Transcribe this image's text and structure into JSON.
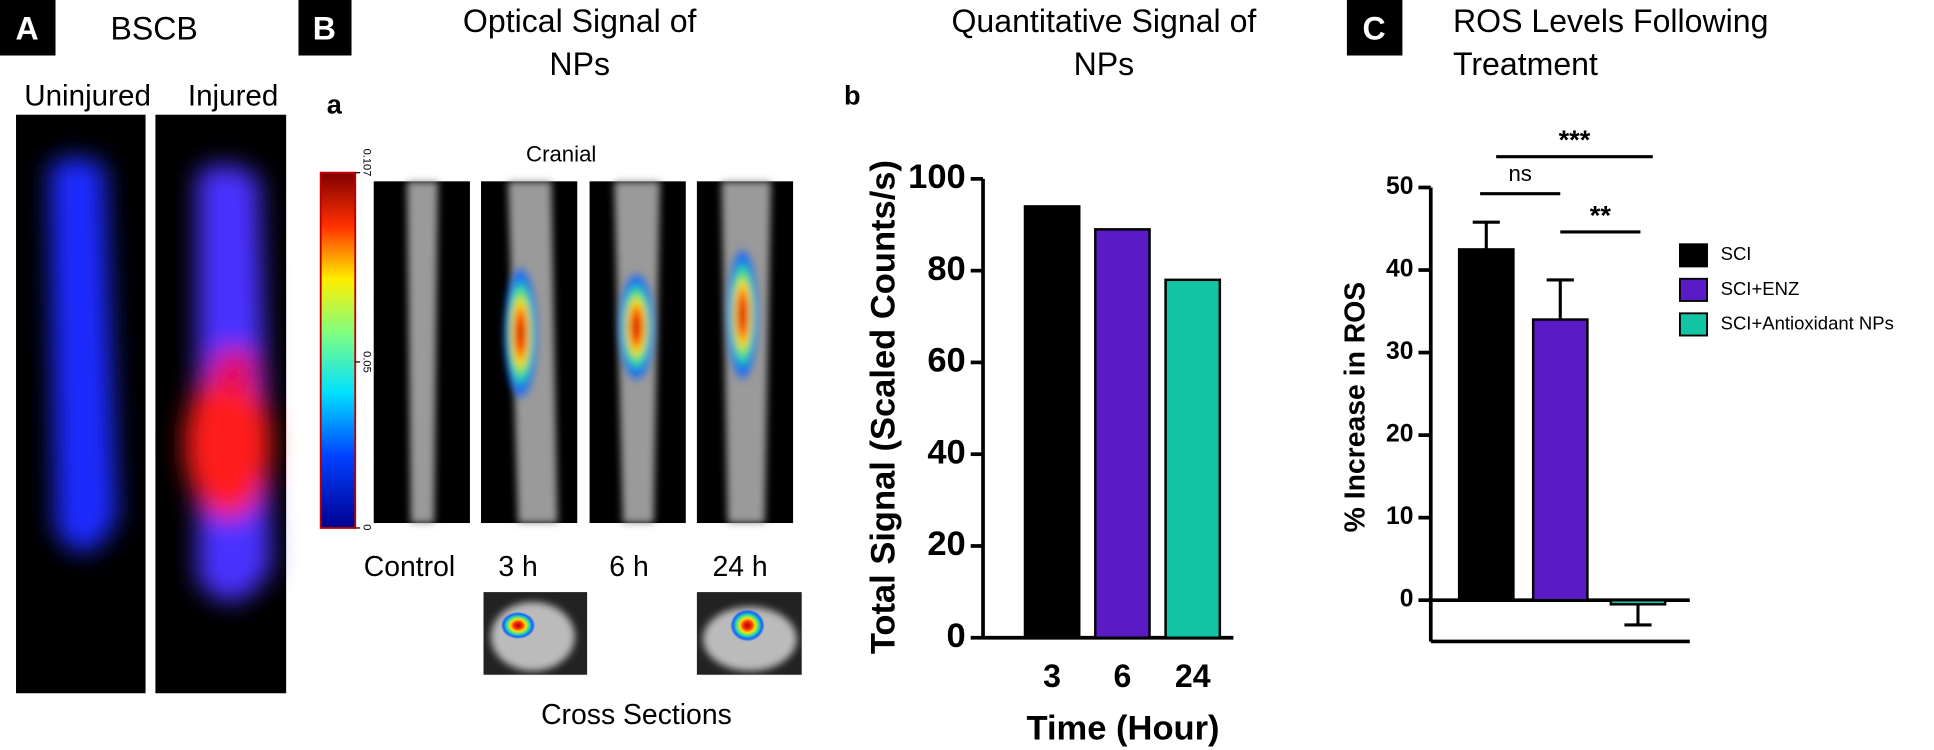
{
  "panel_a": {
    "label": "A",
    "title": "BSCB",
    "images": [
      "Uninjured",
      "Injured"
    ]
  },
  "panel_b": {
    "label": "B",
    "title": "Optical Signal of NPs",
    "sublabel": "a",
    "view": "Cranial",
    "colorbar": {
      "lim": [
        0,
        0.107
      ],
      "ticks": [
        0,
        0.05,
        0.107
      ]
    },
    "columns": [
      "Control",
      "3 h",
      "6 h",
      "24 h"
    ],
    "cross_sections": "Cross Sections",
    "chart_sublabel": "b"
  },
  "panel_c": {
    "label": "C"
  },
  "chart_data": [
    {
      "type": "bar",
      "title": "Quantitative Signal of NPs",
      "categories": [
        "3",
        "6",
        "24"
      ],
      "values": [
        94,
        89,
        78
      ],
      "colors": [
        "#000000",
        "#5a1bc6",
        "#12c4a4"
      ],
      "ylabel": "Total Signal (Scaled Counts/s)",
      "xlabel": "Time (Hour)",
      "ylim": [
        0,
        100
      ],
      "yticks": [
        0,
        20,
        40,
        60,
        80,
        100
      ],
      "grid": false
    },
    {
      "type": "bar",
      "title": "ROS Levels Following Treatment",
      "ylabel": "% Increase in ROS",
      "series": [
        {
          "name": "SCI",
          "color": "#000000",
          "values": [
            42.5
          ],
          "errors": [
            3.3
          ]
        },
        {
          "name": "SCI+ENZ",
          "color": "#5a1bc6",
          "values": [
            34
          ],
          "errors": [
            4.8
          ]
        },
        {
          "name": "SCI+Antioxidant NPs",
          "color": "#12c4a4",
          "values": [
            -0.5
          ],
          "errors": [
            2.5
          ]
        }
      ],
      "annotations": [
        "ns",
        "***",
        "**"
      ],
      "ylim": [
        -5,
        50
      ],
      "yticks": [
        0,
        10,
        20,
        30,
        40,
        50
      ],
      "grid": false,
      "legend": "right"
    }
  ]
}
